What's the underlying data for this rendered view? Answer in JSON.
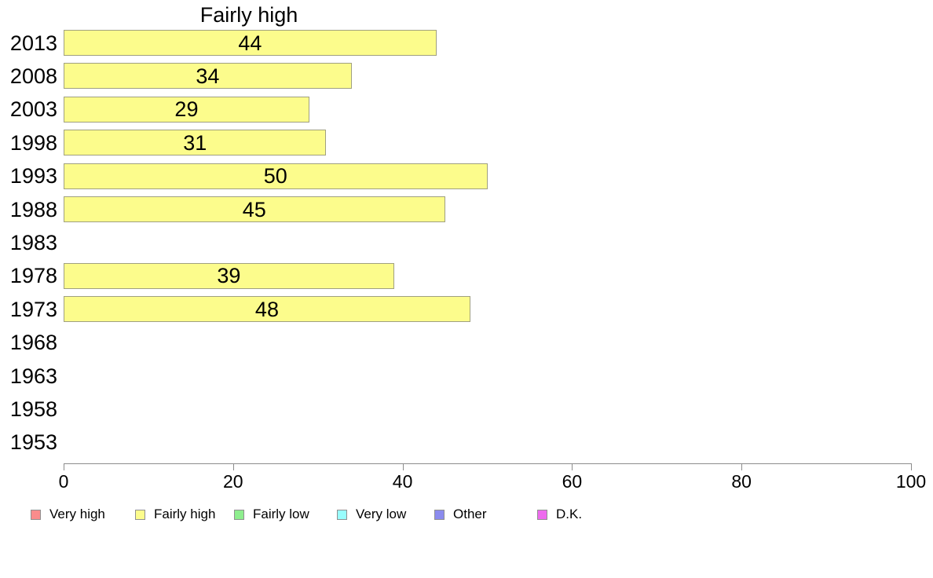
{
  "chart_data": {
    "type": "bar",
    "orientation": "horizontal",
    "title": "Fairly high",
    "categories": [
      "2013",
      "2008",
      "2003",
      "1998",
      "1993",
      "1988",
      "1983",
      "1978",
      "1973",
      "1968",
      "1963",
      "1958",
      "1953"
    ],
    "values": [
      44,
      34,
      29,
      31,
      50,
      45,
      null,
      39,
      48,
      null,
      null,
      null,
      null
    ],
    "xlabel": "",
    "ylabel": "",
    "xlim": [
      0,
      100
    ],
    "x_ticks": [
      0,
      20,
      40,
      60,
      80,
      100
    ],
    "grid": false,
    "bar_fill_color": "#fcfc8c",
    "bar_border_color": "#a0a080",
    "axis_color": "#8c8c8c",
    "legend_position": "bottom",
    "legend": [
      {
        "label": "Very high",
        "color": "#fa8c8c"
      },
      {
        "label": "Fairly high",
        "color": "#fcfc8c"
      },
      {
        "label": "Fairly low",
        "color": "#8eee8e"
      },
      {
        "label": "Very low",
        "color": "#99fdfd"
      },
      {
        "label": "Other",
        "color": "#8b8bee"
      },
      {
        "label": "D.K.",
        "color": "#ee6bee"
      }
    ]
  }
}
